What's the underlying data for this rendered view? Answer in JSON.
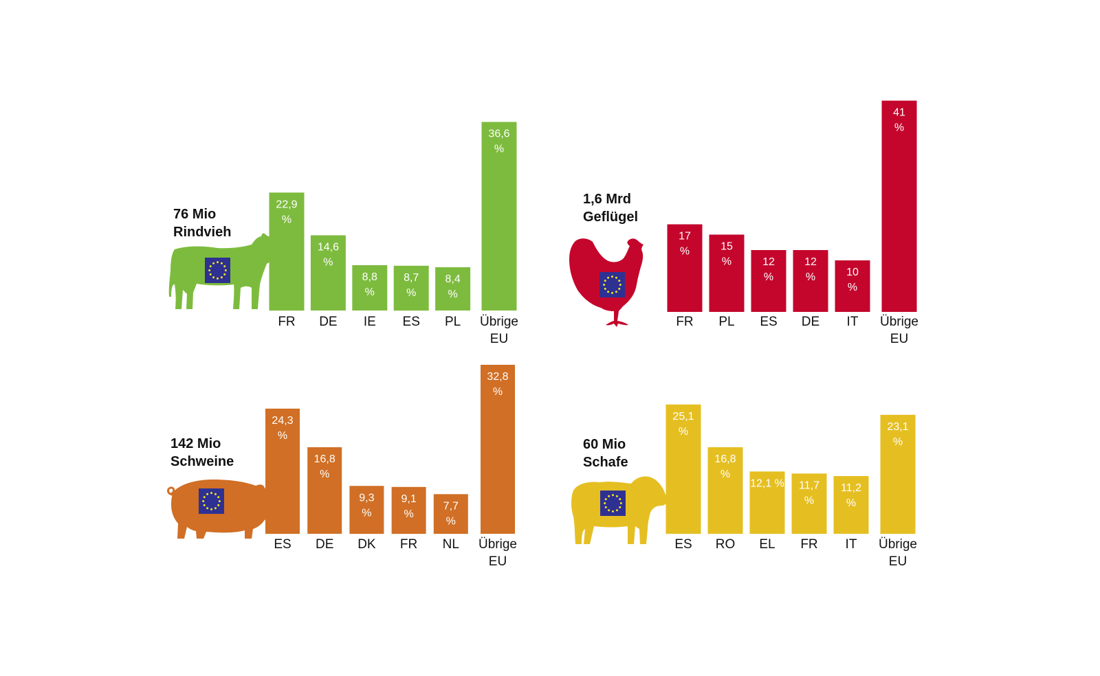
{
  "chart_data": [
    {
      "type": "bar",
      "title_lines": [
        "76 Mio",
        "Rindvieh"
      ],
      "icon": "cow-icon",
      "color": "#7dbb3e",
      "categories": [
        [
          "FR"
        ],
        [
          "DE"
        ],
        [
          "IE"
        ],
        [
          "ES"
        ],
        [
          "PL"
        ],
        [
          "Übrige",
          "EU"
        ]
      ],
      "values": [
        22.9,
        14.6,
        8.8,
        8.7,
        8.4,
        36.6
      ],
      "value_labels": [
        [
          "22,9",
          "%"
        ],
        [
          "14,6",
          "%"
        ],
        [
          "8,8",
          "%"
        ],
        [
          "8,7",
          "%"
        ],
        [
          "8,4",
          "%"
        ],
        [
          "36,6",
          "%"
        ]
      ]
    },
    {
      "type": "bar",
      "title_lines": [
        "1,6 Mrd",
        "Geflügel"
      ],
      "icon": "chicken-icon",
      "color": "#c4062c",
      "categories": [
        [
          "FR"
        ],
        [
          "PL"
        ],
        [
          "ES"
        ],
        [
          "DE"
        ],
        [
          "IT"
        ],
        [
          "Übrige",
          "EU"
        ]
      ],
      "values": [
        17,
        15,
        12,
        12,
        10,
        41
      ],
      "value_labels": [
        [
          "17",
          "%"
        ],
        [
          "15",
          "%"
        ],
        [
          "12",
          "%"
        ],
        [
          "12",
          "%"
        ],
        [
          "10",
          "%"
        ],
        [
          "41",
          "%"
        ]
      ]
    },
    {
      "type": "bar",
      "title_lines": [
        "142 Mio",
        "Schweine"
      ],
      "icon": "pig-icon",
      "color": "#d06f25",
      "categories": [
        [
          "ES"
        ],
        [
          "DE"
        ],
        [
          "DK"
        ],
        [
          "FR"
        ],
        [
          "NL"
        ],
        [
          "Übrige",
          "EU"
        ]
      ],
      "values": [
        24.3,
        16.8,
        9.3,
        9.1,
        7.7,
        32.8
      ],
      "value_labels": [
        [
          "24,3",
          "%"
        ],
        [
          "16,8",
          "%"
        ],
        [
          "9,3",
          "%"
        ],
        [
          "9,1",
          "%"
        ],
        [
          "7,7",
          "%"
        ],
        [
          "32,8",
          "%"
        ]
      ]
    },
    {
      "type": "bar",
      "title_lines": [
        "60 Mio",
        "Schafe"
      ],
      "icon": "sheep-icon",
      "color": "#e5bf22",
      "categories": [
        [
          "ES"
        ],
        [
          "RO"
        ],
        [
          "EL"
        ],
        [
          "FR"
        ],
        [
          "IT"
        ],
        [
          "Übrige",
          "EU"
        ]
      ],
      "values": [
        25.1,
        16.8,
        12.1,
        11.7,
        11.2,
        23.1
      ],
      "value_labels": [
        [
          "25,1",
          "%"
        ],
        [
          "16,8",
          "%"
        ],
        [
          "12,1 %"
        ],
        [
          "11,7",
          "%"
        ],
        [
          "11,2",
          "%"
        ],
        [
          "23,1",
          "%"
        ]
      ]
    }
  ],
  "eu_flag": {
    "background": "#2e3192",
    "stars": "#f6e61a",
    "icon": "eu-flag-icon"
  }
}
